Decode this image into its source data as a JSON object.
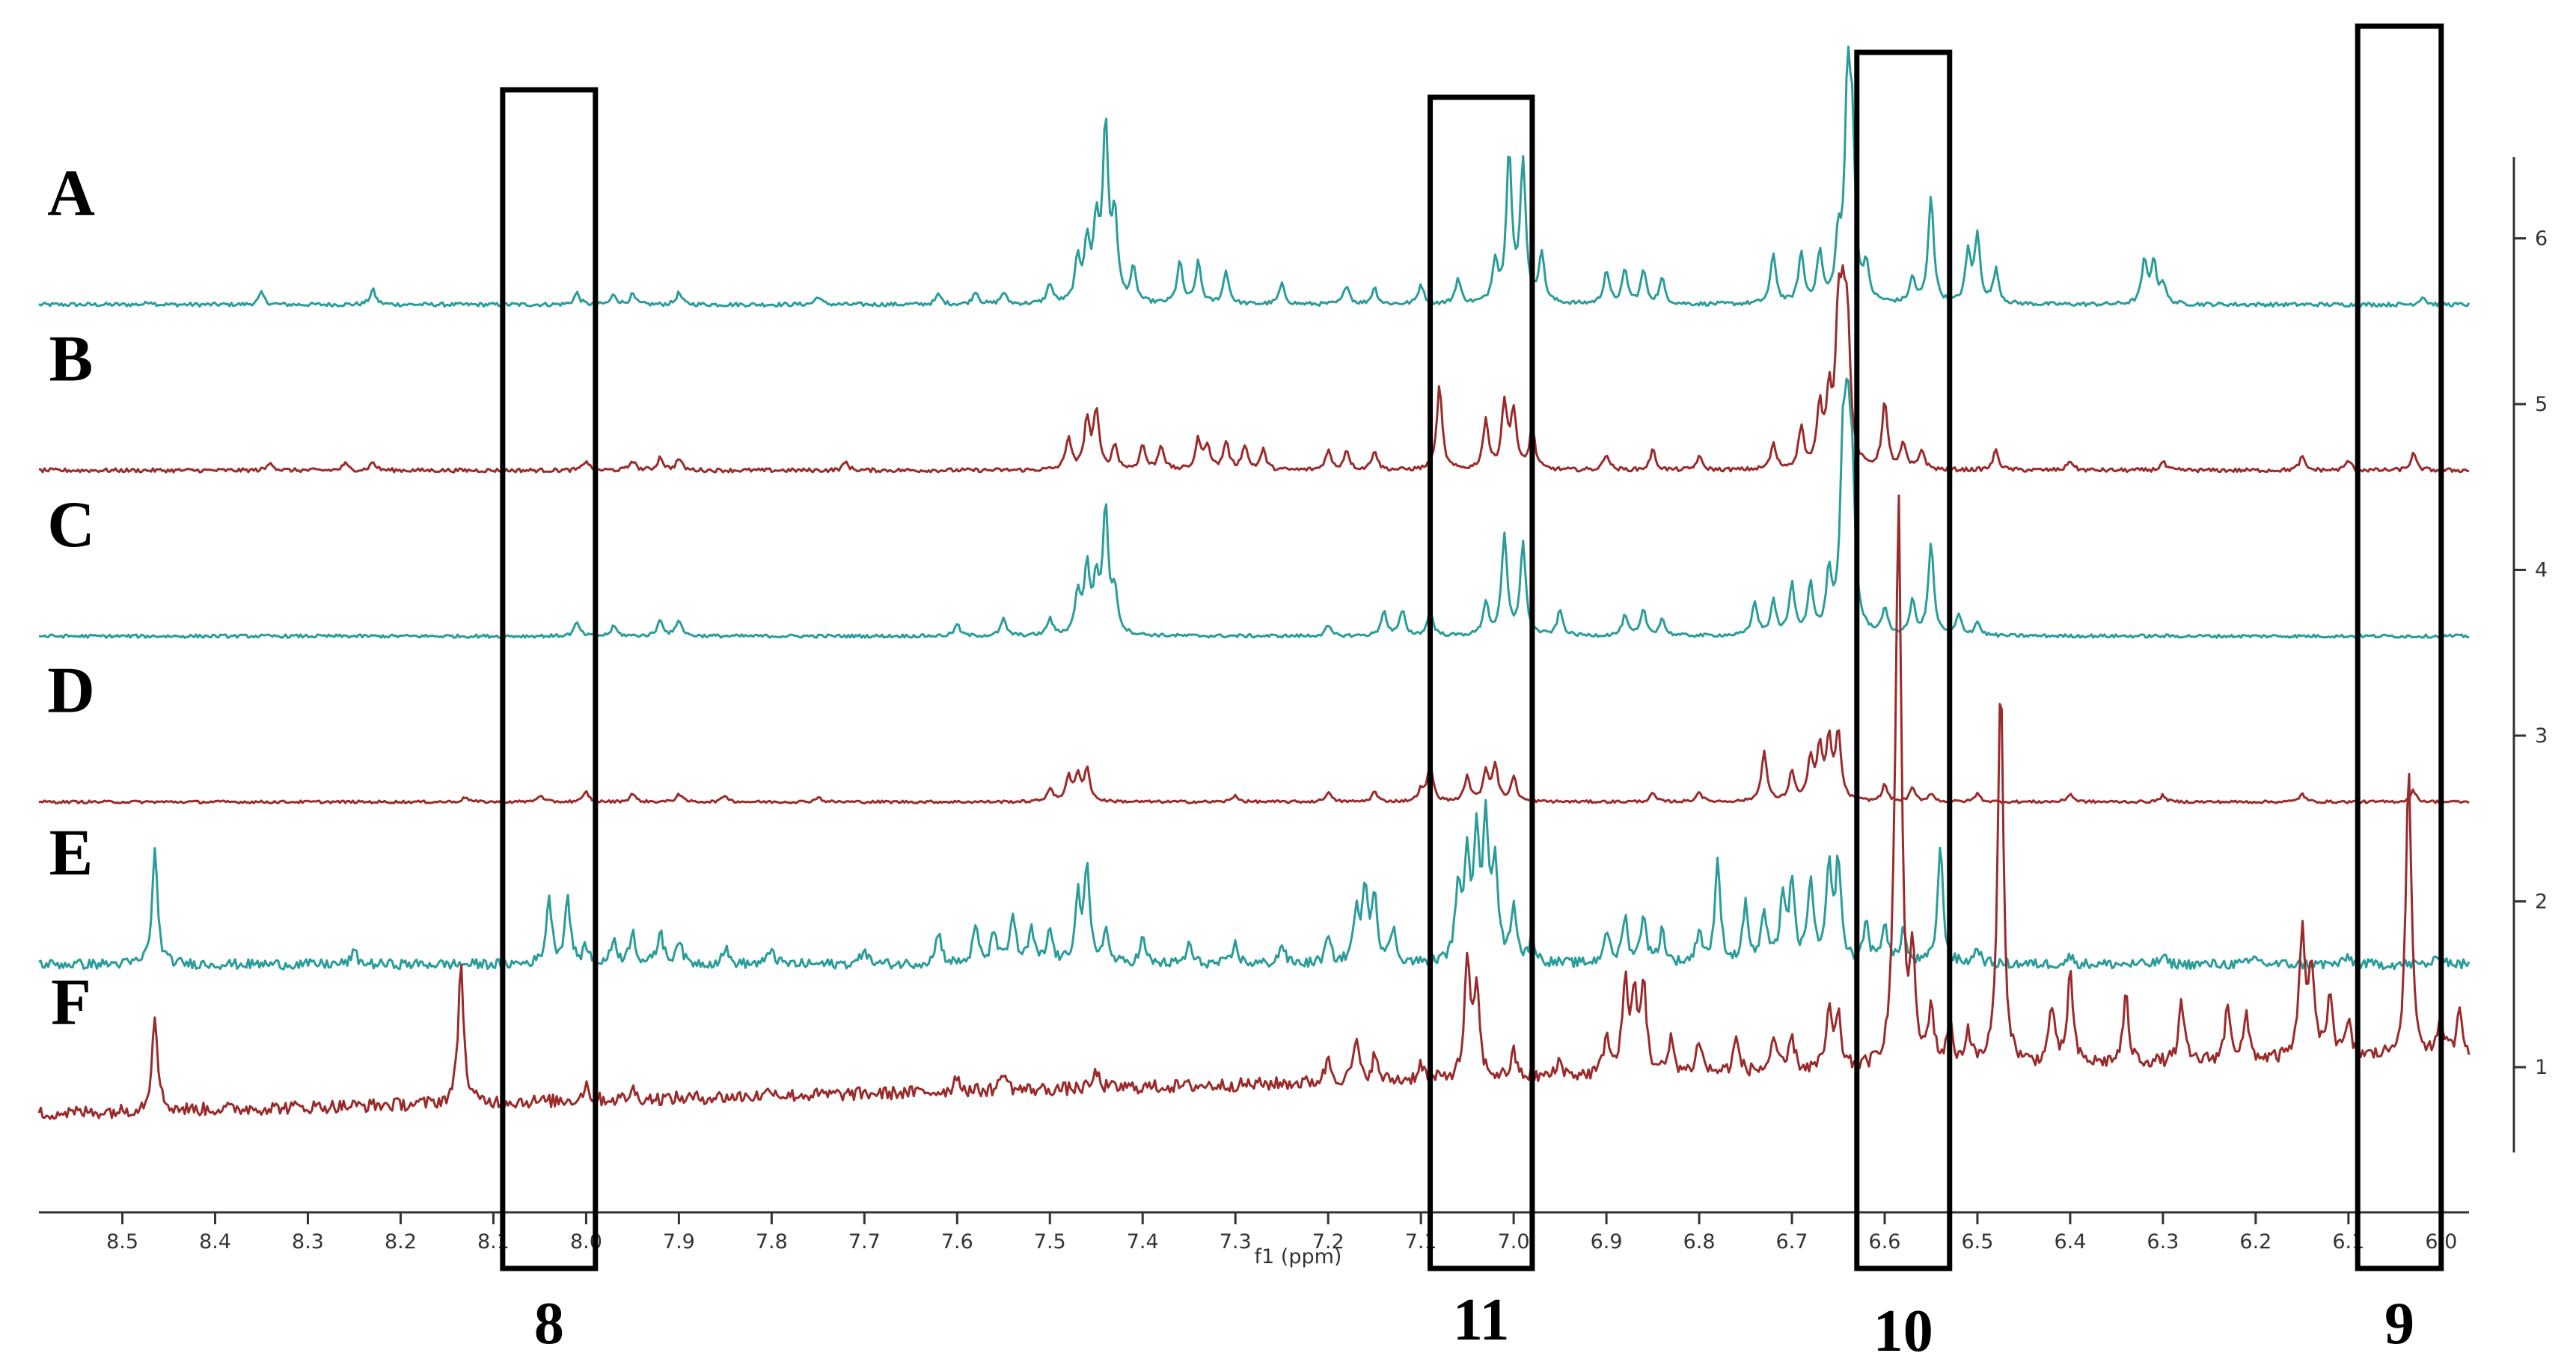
{
  "chart_data": {
    "type": "line",
    "title": "",
    "xlabel": "f1 (ppm)",
    "ylabel": "",
    "x_axis": {
      "range": [
        8.59,
        5.97
      ],
      "reversed": true,
      "ticks": [
        8.5,
        8.4,
        8.3,
        8.2,
        8.1,
        8.0,
        7.9,
        7.8,
        7.7,
        7.6,
        7.5,
        7.4,
        7.3,
        7.2,
        7.1,
        7.0,
        6.9,
        6.8,
        6.7,
        6.6,
        6.5,
        6.4,
        6.3,
        6.2,
        6.1,
        6.0
      ],
      "tick_labels": [
        "8.5",
        "8.4",
        "8.3",
        "8.2",
        "8.1",
        "8.0",
        "7.9",
        "7.8",
        "7.7",
        "7.6",
        "7.5",
        "7.4",
        "7.3",
        "7.2",
        "7.1",
        "7.0",
        "6.9",
        "6.8",
        "6.7",
        "6.6",
        "6.5",
        "6.4",
        "6.3",
        "6.2",
        "6.1",
        "6.0"
      ]
    },
    "y_axis": {
      "position": "right",
      "range": [
        0.2,
        6.6
      ],
      "ticks": [
        1,
        2,
        3,
        4,
        5,
        6
      ],
      "tick_labels": [
        "1",
        "2",
        "3",
        "4",
        "5",
        "6"
      ]
    },
    "grid": false,
    "legend": "none",
    "series": [
      {
        "name": "A",
        "color": "#2a9d9a",
        "baseline": 5.6,
        "noise": 0.012,
        "peaks": [
          [
            8.47,
            0.02
          ],
          [
            8.35,
            0.07
          ],
          [
            8.23,
            0.09
          ],
          [
            8.01,
            0.07
          ],
          [
            7.97,
            0.06
          ],
          [
            7.95,
            0.06
          ],
          [
            7.9,
            0.07
          ],
          [
            7.75,
            0.05
          ],
          [
            7.62,
            0.06
          ],
          [
            7.58,
            0.08
          ],
          [
            7.55,
            0.07
          ],
          [
            7.5,
            0.12
          ],
          [
            7.47,
            0.25
          ],
          [
            7.46,
            0.35
          ],
          [
            7.45,
            0.45
          ],
          [
            7.44,
            1.05
          ],
          [
            7.43,
            0.5
          ],
          [
            7.41,
            0.2
          ],
          [
            7.36,
            0.25
          ],
          [
            7.34,
            0.25
          ],
          [
            7.31,
            0.2
          ],
          [
            7.25,
            0.12
          ],
          [
            7.18,
            0.12
          ],
          [
            7.15,
            0.1
          ],
          [
            7.1,
            0.12
          ],
          [
            7.06,
            0.15
          ],
          [
            7.02,
            0.25
          ],
          [
            7.005,
            0.9
          ],
          [
            6.99,
            0.85
          ],
          [
            6.97,
            0.3
          ],
          [
            6.9,
            0.2
          ],
          [
            6.88,
            0.2
          ],
          [
            6.86,
            0.2
          ],
          [
            6.84,
            0.15
          ],
          [
            6.72,
            0.3
          ],
          [
            6.69,
            0.3
          ],
          [
            6.67,
            0.3
          ],
          [
            6.65,
            0.35
          ],
          [
            6.64,
            1.2
          ],
          [
            6.635,
            0.9
          ],
          [
            6.62,
            0.2
          ],
          [
            6.57,
            0.15
          ],
          [
            6.55,
            0.65
          ],
          [
            6.51,
            0.3
          ],
          [
            6.5,
            0.4
          ],
          [
            6.48,
            0.2
          ],
          [
            6.32,
            0.25
          ],
          [
            6.31,
            0.25
          ],
          [
            6.3,
            0.12
          ],
          [
            6.02,
            0.05
          ]
        ]
      },
      {
        "name": "B",
        "color": "#9b2b2b",
        "baseline": 4.6,
        "noise": 0.012,
        "peaks": [
          [
            8.34,
            0.05
          ],
          [
            8.26,
            0.04
          ],
          [
            8.23,
            0.05
          ],
          [
            8.0,
            0.06
          ],
          [
            7.95,
            0.06
          ],
          [
            7.92,
            0.08
          ],
          [
            7.9,
            0.07
          ],
          [
            7.72,
            0.05
          ],
          [
            7.48,
            0.2
          ],
          [
            7.46,
            0.3
          ],
          [
            7.45,
            0.35
          ],
          [
            7.43,
            0.15
          ],
          [
            7.4,
            0.15
          ],
          [
            7.38,
            0.15
          ],
          [
            7.34,
            0.18
          ],
          [
            7.33,
            0.15
          ],
          [
            7.31,
            0.17
          ],
          [
            7.29,
            0.15
          ],
          [
            7.27,
            0.12
          ],
          [
            7.2,
            0.12
          ],
          [
            7.18,
            0.12
          ],
          [
            7.15,
            0.12
          ],
          [
            7.08,
            0.5
          ],
          [
            7.03,
            0.3
          ],
          [
            7.01,
            0.4
          ],
          [
            7.0,
            0.35
          ],
          [
            6.98,
            0.25
          ],
          [
            6.9,
            0.1
          ],
          [
            6.85,
            0.12
          ],
          [
            6.8,
            0.08
          ],
          [
            6.72,
            0.15
          ],
          [
            6.69,
            0.25
          ],
          [
            6.67,
            0.35
          ],
          [
            6.66,
            0.4
          ],
          [
            6.65,
            0.8
          ],
          [
            6.645,
            0.7
          ],
          [
            6.64,
            0.75
          ],
          [
            6.6,
            0.4
          ],
          [
            6.58,
            0.15
          ],
          [
            6.56,
            0.12
          ],
          [
            6.48,
            0.12
          ],
          [
            6.4,
            0.06
          ],
          [
            6.3,
            0.05
          ],
          [
            6.15,
            0.08
          ],
          [
            6.1,
            0.06
          ],
          [
            6.03,
            0.1
          ]
        ]
      },
      {
        "name": "C",
        "color": "#2a9d9a",
        "baseline": 3.6,
        "noise": 0.01,
        "peaks": [
          [
            8.01,
            0.08
          ],
          [
            7.97,
            0.06
          ],
          [
            7.92,
            0.1
          ],
          [
            7.9,
            0.1
          ],
          [
            7.6,
            0.07
          ],
          [
            7.55,
            0.1
          ],
          [
            7.5,
            0.1
          ],
          [
            7.47,
            0.25
          ],
          [
            7.46,
            0.4
          ],
          [
            7.45,
            0.3
          ],
          [
            7.44,
            0.75
          ],
          [
            7.43,
            0.25
          ],
          [
            7.2,
            0.06
          ],
          [
            7.14,
            0.15
          ],
          [
            7.12,
            0.15
          ],
          [
            7.09,
            0.15
          ],
          [
            7.03,
            0.2
          ],
          [
            7.01,
            0.6
          ],
          [
            6.99,
            0.55
          ],
          [
            6.95,
            0.15
          ],
          [
            6.88,
            0.12
          ],
          [
            6.86,
            0.15
          ],
          [
            6.84,
            0.1
          ],
          [
            6.74,
            0.2
          ],
          [
            6.72,
            0.2
          ],
          [
            6.7,
            0.3
          ],
          [
            6.68,
            0.3
          ],
          [
            6.66,
            0.35
          ],
          [
            6.645,
            0.95
          ],
          [
            6.64,
            1.0
          ],
          [
            6.635,
            0.8
          ],
          [
            6.6,
            0.15
          ],
          [
            6.57,
            0.2
          ],
          [
            6.55,
            0.55
          ],
          [
            6.52,
            0.12
          ],
          [
            6.5,
            0.08
          ]
        ]
      },
      {
        "name": "D",
        "color": "#9b2b2b",
        "baseline": 2.6,
        "noise": 0.008,
        "peaks": [
          [
            8.13,
            0.03
          ],
          [
            8.05,
            0.04
          ],
          [
            8.0,
            0.06
          ],
          [
            7.95,
            0.05
          ],
          [
            7.9,
            0.05
          ],
          [
            7.85,
            0.04
          ],
          [
            7.75,
            0.03
          ],
          [
            7.5,
            0.08
          ],
          [
            7.48,
            0.15
          ],
          [
            7.47,
            0.15
          ],
          [
            7.46,
            0.2
          ],
          [
            7.3,
            0.04
          ],
          [
            7.2,
            0.06
          ],
          [
            7.15,
            0.06
          ],
          [
            7.1,
            0.07
          ],
          [
            7.09,
            0.22
          ],
          [
            7.05,
            0.15
          ],
          [
            7.03,
            0.18
          ],
          [
            7.02,
            0.22
          ],
          [
            7.0,
            0.15
          ],
          [
            6.85,
            0.05
          ],
          [
            6.8,
            0.06
          ],
          [
            6.73,
            0.3
          ],
          [
            6.7,
            0.18
          ],
          [
            6.68,
            0.25
          ],
          [
            6.67,
            0.3
          ],
          [
            6.66,
            0.35
          ],
          [
            6.65,
            0.4
          ],
          [
            6.6,
            0.1
          ],
          [
            6.57,
            0.08
          ],
          [
            6.55,
            0.05
          ],
          [
            6.5,
            0.05
          ],
          [
            6.4,
            0.05
          ],
          [
            6.3,
            0.04
          ],
          [
            6.15,
            0.05
          ],
          [
            6.03,
            0.07
          ]
        ]
      },
      {
        "name": "E",
        "color": "#2a9d9a",
        "baseline": 1.62,
        "noise": 0.03,
        "peaks": [
          [
            8.465,
            0.68
          ],
          [
            8.25,
            0.08
          ],
          [
            8.04,
            0.4
          ],
          [
            8.02,
            0.4
          ],
          [
            8.0,
            0.1
          ],
          [
            7.97,
            0.15
          ],
          [
            7.95,
            0.2
          ],
          [
            7.92,
            0.2
          ],
          [
            7.9,
            0.15
          ],
          [
            7.85,
            0.1
          ],
          [
            7.8,
            0.1
          ],
          [
            7.7,
            0.1
          ],
          [
            7.62,
            0.2
          ],
          [
            7.58,
            0.22
          ],
          [
            7.56,
            0.2
          ],
          [
            7.54,
            0.3
          ],
          [
            7.52,
            0.2
          ],
          [
            7.5,
            0.2
          ],
          [
            7.47,
            0.4
          ],
          [
            7.46,
            0.55
          ],
          [
            7.44,
            0.2
          ],
          [
            7.4,
            0.15
          ],
          [
            7.35,
            0.12
          ],
          [
            7.3,
            0.12
          ],
          [
            7.25,
            0.12
          ],
          [
            7.2,
            0.15
          ],
          [
            7.17,
            0.3
          ],
          [
            7.16,
            0.45
          ],
          [
            7.15,
            0.4
          ],
          [
            7.13,
            0.2
          ],
          [
            7.06,
            0.45
          ],
          [
            7.05,
            0.6
          ],
          [
            7.04,
            0.75
          ],
          [
            7.03,
            0.8
          ],
          [
            7.02,
            0.6
          ],
          [
            7.0,
            0.35
          ],
          [
            6.98,
            0.15
          ],
          [
            6.9,
            0.2
          ],
          [
            6.88,
            0.28
          ],
          [
            6.86,
            0.3
          ],
          [
            6.84,
            0.2
          ],
          [
            6.8,
            0.2
          ],
          [
            6.78,
            0.6
          ],
          [
            6.75,
            0.35
          ],
          [
            6.73,
            0.3
          ],
          [
            6.71,
            0.4
          ],
          [
            6.7,
            0.45
          ],
          [
            6.68,
            0.5
          ],
          [
            6.66,
            0.55
          ],
          [
            6.65,
            0.6
          ],
          [
            6.62,
            0.25
          ],
          [
            6.6,
            0.25
          ],
          [
            6.58,
            0.2
          ],
          [
            6.54,
            0.7
          ],
          [
            6.5,
            0.1
          ],
          [
            6.4,
            0.05
          ],
          [
            6.3,
            0.05
          ],
          [
            6.2,
            0.05
          ],
          [
            6.1,
            0.05
          ],
          [
            6.0,
            0.08
          ]
        ]
      },
      {
        "name": "F",
        "color": "#9b2b2b",
        "baseline": 0.72,
        "noise": 0.04,
        "slope": 0.35,
        "peaks": [
          [
            8.465,
            0.6
          ],
          [
            8.135,
            0.85
          ],
          [
            8.0,
            0.1
          ],
          [
            7.95,
            0.06
          ],
          [
            7.8,
            0.05
          ],
          [
            7.6,
            0.1
          ],
          [
            7.55,
            0.12
          ],
          [
            7.45,
            0.1
          ],
          [
            7.2,
            0.15
          ],
          [
            7.17,
            0.25
          ],
          [
            7.15,
            0.15
          ],
          [
            7.1,
            0.1
          ],
          [
            7.05,
            0.7
          ],
          [
            7.04,
            0.55
          ],
          [
            7.0,
            0.15
          ],
          [
            6.95,
            0.1
          ],
          [
            6.9,
            0.25
          ],
          [
            6.88,
            0.55
          ],
          [
            6.87,
            0.45
          ],
          [
            6.86,
            0.55
          ],
          [
            6.83,
            0.2
          ],
          [
            6.8,
            0.2
          ],
          [
            6.76,
            0.2
          ],
          [
            6.72,
            0.2
          ],
          [
            6.7,
            0.2
          ],
          [
            6.66,
            0.35
          ],
          [
            6.65,
            0.3
          ],
          [
            6.59,
            0.3
          ],
          [
            6.585,
            3.35
          ],
          [
            6.57,
            0.6
          ],
          [
            6.55,
            0.35
          ],
          [
            6.53,
            0.25
          ],
          [
            6.51,
            0.2
          ],
          [
            6.475,
            2.35
          ],
          [
            6.42,
            0.35
          ],
          [
            6.4,
            0.55
          ],
          [
            6.34,
            0.4
          ],
          [
            6.28,
            0.35
          ],
          [
            6.23,
            0.35
          ],
          [
            6.21,
            0.25
          ],
          [
            6.15,
            0.75
          ],
          [
            6.14,
            0.55
          ],
          [
            6.12,
            0.4
          ],
          [
            6.1,
            0.2
          ],
          [
            6.035,
            1.75
          ],
          [
            6.0,
            0.2
          ],
          [
            5.98,
            0.3
          ]
        ]
      }
    ],
    "highlight_regions": [
      {
        "label": "8",
        "ppm_range": [
          8.09,
          7.99
        ]
      },
      {
        "label": "11",
        "ppm_range": [
          7.09,
          6.98
        ]
      },
      {
        "label": "10",
        "ppm_range": [
          6.63,
          6.53
        ]
      },
      {
        "label": "9",
        "ppm_range": [
          6.09,
          6.0
        ]
      }
    ]
  }
}
